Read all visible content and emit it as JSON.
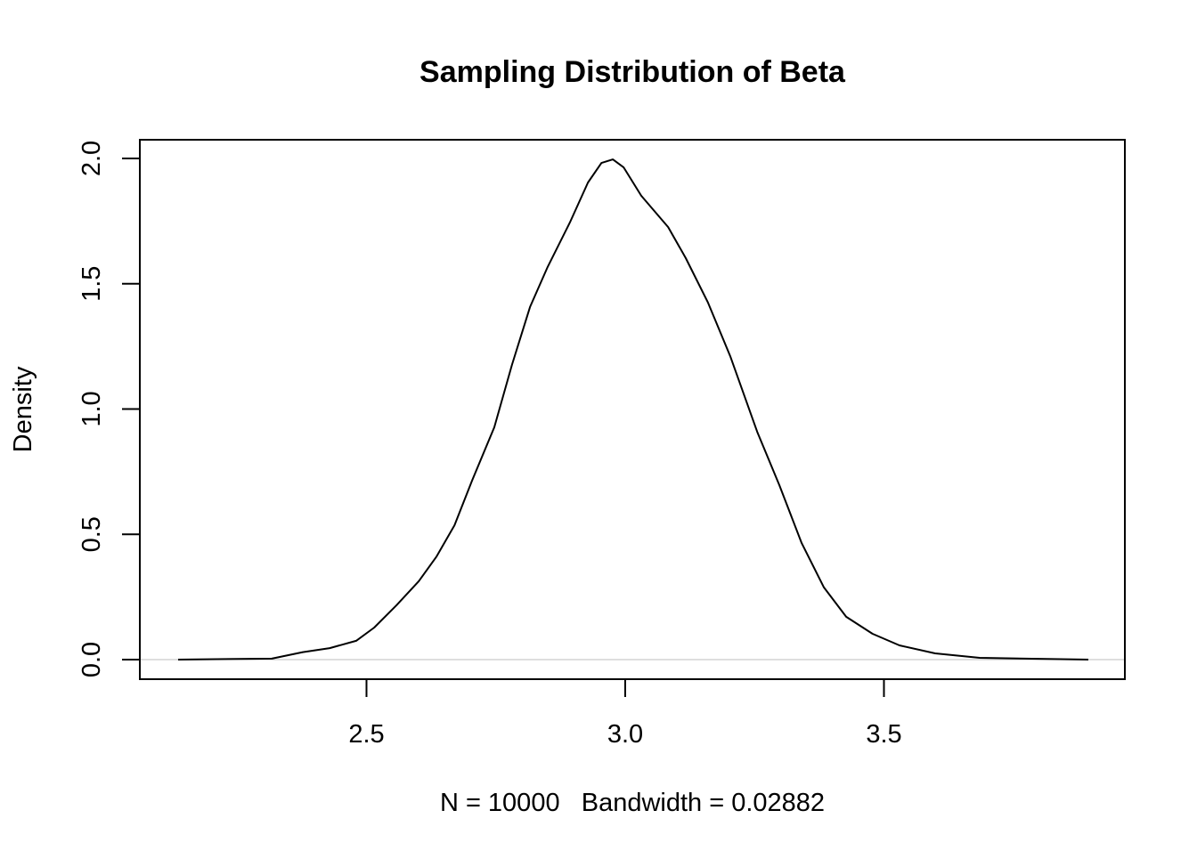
{
  "chart_data": {
    "type": "line",
    "title": "Sampling Distribution of Beta",
    "xlabel": "N = 10000   Bandwidth = 0.02882",
    "ylabel": "Density",
    "xlim": [
      2.1,
      4.0
    ],
    "ylim": [
      -0.08,
      2.08
    ],
    "xticks": [
      2.5,
      3.0,
      3.5
    ],
    "xtick_labels": [
      "2.5",
      "3.0",
      "3.5"
    ],
    "yticks": [
      0.0,
      0.5,
      1.0,
      1.5,
      2.0
    ],
    "ytick_labels": [
      "0.0",
      "0.5",
      "1.0",
      "1.5",
      "2.0"
    ],
    "grid": false,
    "zero_line_color": "#bebebe",
    "line_color": "#000000",
    "series": [
      {
        "name": "density",
        "x": [
          2.136,
          2.317,
          2.377,
          2.429,
          2.48,
          2.515,
          2.558,
          2.601,
          2.635,
          2.67,
          2.704,
          2.747,
          2.781,
          2.816,
          2.85,
          2.893,
          2.928,
          2.954,
          2.976,
          2.997,
          3.031,
          3.083,
          3.117,
          3.16,
          3.203,
          3.255,
          3.298,
          3.341,
          3.384,
          3.427,
          3.478,
          3.53,
          3.599,
          3.685,
          3.895
        ],
        "y": [
          0,
          0.004,
          0.03,
          0.046,
          0.075,
          0.128,
          0.217,
          0.313,
          0.41,
          0.536,
          0.714,
          0.927,
          1.176,
          1.407,
          1.567,
          1.744,
          1.904,
          1.982,
          1.996,
          1.964,
          1.851,
          1.726,
          1.602,
          1.424,
          1.211,
          0.909,
          0.696,
          0.465,
          0.288,
          0.171,
          0.103,
          0.057,
          0.025,
          0.007,
          0
        ]
      }
    ]
  }
}
